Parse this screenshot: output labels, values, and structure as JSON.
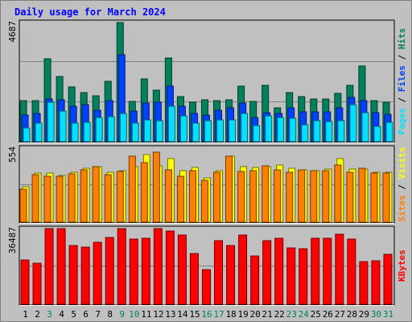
{
  "chart_data": {
    "type": "bar",
    "title": "Daily usage for March 2024",
    "categories": [
      "1",
      "2",
      "3",
      "4",
      "5",
      "6",
      "7",
      "8",
      "9",
      "10",
      "11",
      "12",
      "13",
      "14",
      "15",
      "16",
      "17",
      "18",
      "19",
      "20",
      "21",
      "22",
      "23",
      "24",
      "25",
      "26",
      "27",
      "28",
      "29",
      "30",
      "31"
    ],
    "weekend_days": [
      "3",
      "9",
      "10",
      "16",
      "17",
      "23",
      "24",
      "30",
      "31"
    ],
    "panels": [
      {
        "id": "hits_files_pages",
        "max_label": "4687",
        "ymax": 4687,
        "series": [
          {
            "name": "Hits",
            "color": "#00805c",
            "values": [
              1610,
              1610,
              3250,
              2570,
              2140,
              1930,
              1800,
              2360,
              4687,
              1580,
              2460,
              2020,
              3300,
              1770,
              1550,
              1640,
              1610,
              1640,
              2190,
              1580,
              2220,
              1340,
              1930,
              1770,
              1670,
              1670,
              1890,
              2220,
              2980,
              1610,
              1550
            ]
          },
          {
            "name": "Files",
            "color": "#0040ff",
            "values": [
              1050,
              1110,
              1690,
              1650,
              1380,
              1460,
              1240,
              1610,
              3430,
              1210,
              1520,
              1550,
              2170,
              1380,
              1110,
              1030,
              1250,
              1320,
              1520,
              940,
              1150,
              1120,
              1340,
              1180,
              1170,
              1170,
              1340,
              1740,
              1620,
              1130,
              1080
            ]
          },
          {
            "name": "Pages",
            "color": "#00e0ff",
            "values": [
              550,
              740,
              1540,
              1210,
              730,
              760,
              940,
              970,
              1100,
              740,
              840,
              810,
              1380,
              1000,
              720,
              810,
              850,
              870,
              1110,
              640,
              1010,
              950,
              930,
              660,
              820,
              790,
              820,
              1450,
              1150,
              610,
              750
            ]
          }
        ],
        "axis_labels": [
          {
            "text": "Pages",
            "color": "#00e0ff"
          },
          {
            "text": " / ",
            "color": "#000000"
          },
          {
            "text": "Files",
            "color": "#0040ff"
          },
          {
            "text": " / ",
            "color": "#000000"
          },
          {
            "text": "Hits",
            "color": "#00805c"
          }
        ]
      },
      {
        "id": "visits_sites",
        "max_label": "554",
        "ymax": 554,
        "series": [
          {
            "name": "Visits",
            "color": "#ffff00",
            "values": [
              265,
              365,
              365,
              350,
              374,
              404,
              418,
              373,
              385,
              416,
              505,
              423,
              474,
              385,
              412,
              330,
              387,
              495,
              418,
              412,
              418,
              425,
              404,
              390,
              388,
              396,
              475,
              396,
              396,
              374,
              374
            ]
          },
          {
            "name": "Sites",
            "color": "#ff8000",
            "values": [
              247,
              355,
              343,
              346,
              363,
              389,
              417,
              353,
              380,
              491,
              447,
              524,
              389,
              346,
              383,
              316,
              374,
              491,
              382,
              384,
              423,
              394,
              374,
              389,
              385,
              387,
              426,
              376,
              404,
              369,
              369
            ]
          }
        ],
        "axis_labels": [
          {
            "text": "Sites",
            "color": "#ff8000"
          },
          {
            "text": " / ",
            "color": "#000000"
          },
          {
            "text": "Visits",
            "color": "#ffff00"
          }
        ]
      },
      {
        "id": "kbytes",
        "max_label": "36487",
        "ymax": 36487,
        "series": [
          {
            "name": "KBytes",
            "color": "#ff0000",
            "values": [
              21300,
              19800,
              36487,
              36487,
              28200,
              27600,
              30000,
              32100,
              36487,
              31300,
              31900,
              36487,
              35200,
              33500,
              24500,
              16600,
              30800,
              28200,
              33500,
              23300,
              30800,
              31900,
              27200,
              26600,
              31900,
              31900,
              33800,
              31300,
              20500,
              21000,
              23900
            ]
          }
        ],
        "axis_labels": [
          {
            "text": "KBytes",
            "color": "#ff0000"
          }
        ]
      }
    ]
  }
}
